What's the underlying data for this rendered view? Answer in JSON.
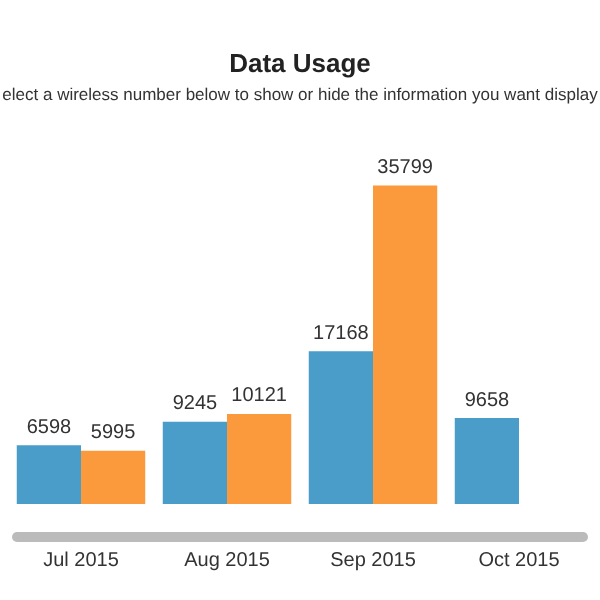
{
  "chart_data": {
    "type": "bar",
    "title": "Data Usage",
    "subtitle": "elect a wireless number below to show or hide the information you want display",
    "categories": [
      "Jul 2015",
      "Aug 2015",
      "Sep 2015",
      "Oct 2015"
    ],
    "series": [
      {
        "color": "#4a9cc9",
        "values": [
          6598,
          9245,
          17168,
          9658
        ]
      },
      {
        "color": "#fb9a3d",
        "values": [
          5995,
          10121,
          35799,
          null
        ]
      }
    ],
    "data_labels": true
  }
}
